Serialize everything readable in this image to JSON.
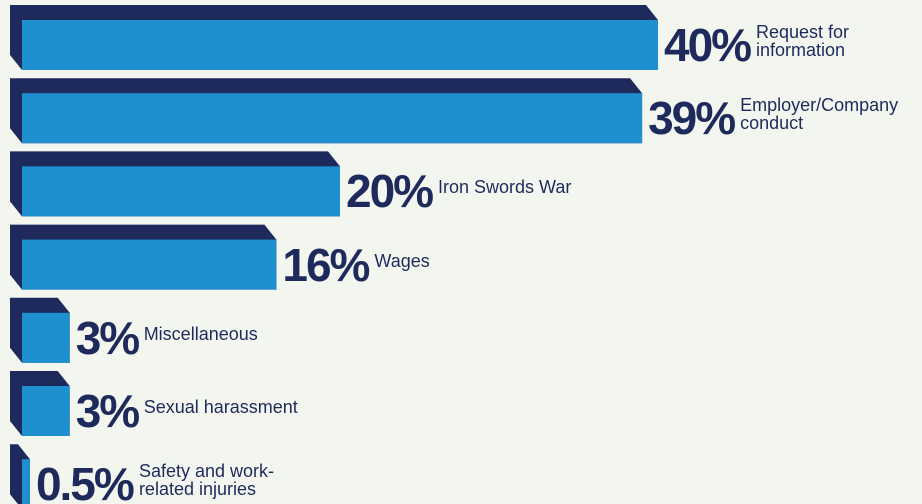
{
  "chart_data": {
    "type": "bar",
    "orientation": "horizontal",
    "categories": [
      "Request for\ninformation",
      "Employer/Company\nconduct",
      "Iron Swords War",
      "Wages",
      "Miscellaneous",
      "Sexual harassment",
      "Safety and work-\nrelated injuries"
    ],
    "values": [
      40,
      39,
      20,
      16,
      3,
      3,
      0.5
    ],
    "value_labels": [
      "40%",
      "39%",
      "20%",
      "16%",
      "3%",
      "3%",
      "0.5%"
    ],
    "color": "#1e90d0",
    "shadow_color": "#1f2a5c"
  }
}
